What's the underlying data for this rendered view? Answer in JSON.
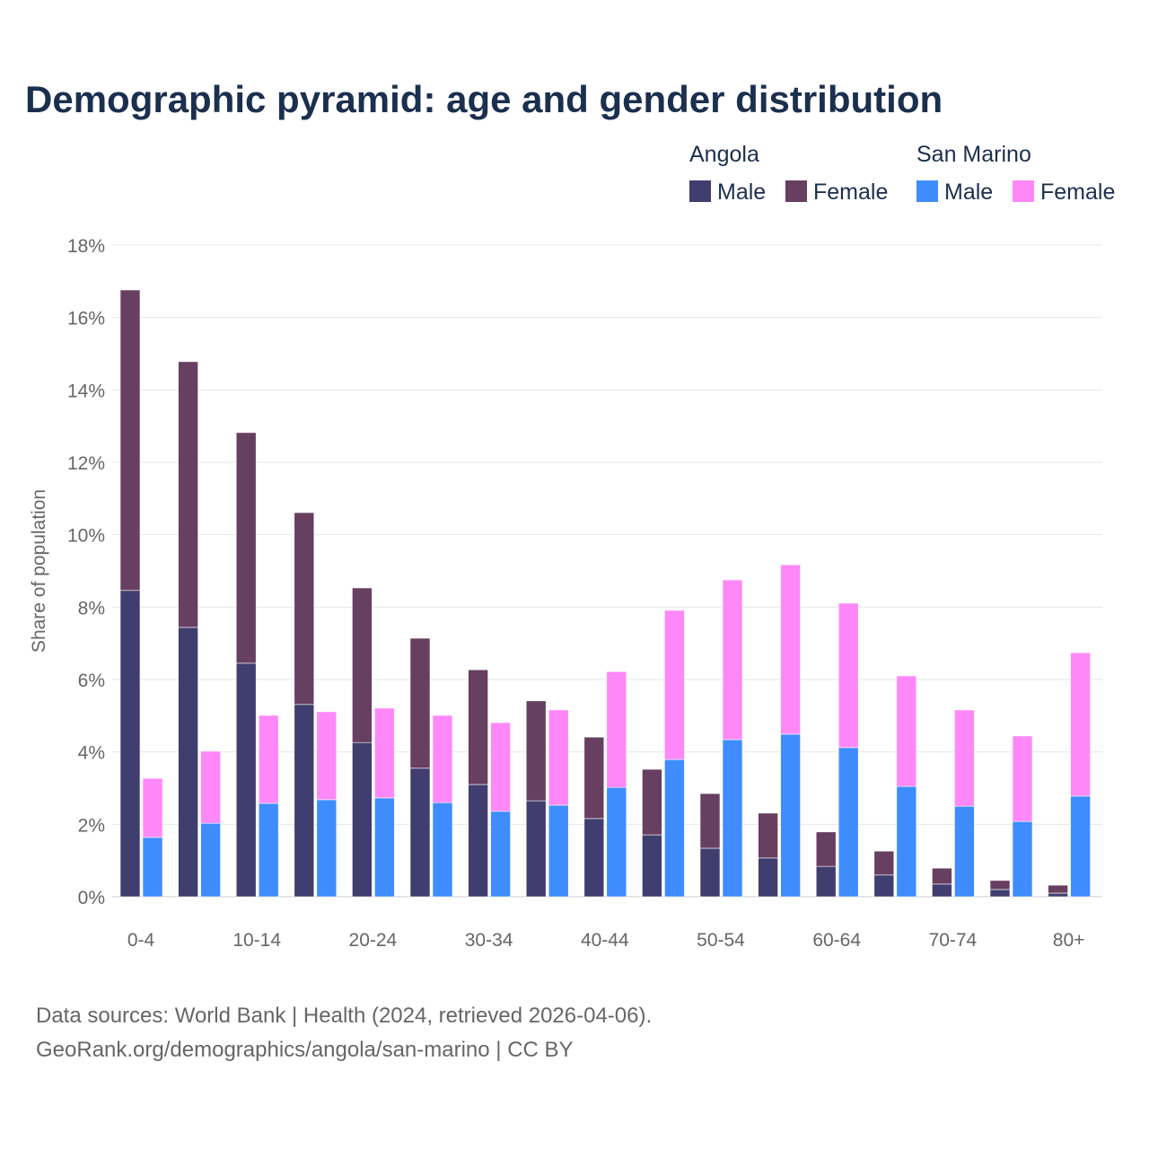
{
  "chart_data": {
    "type": "bar",
    "stacked": true,
    "title": "Demographic pyramid: age and gender distribution",
    "xlabel": "",
    "ylabel": "Share of population",
    "ylim": [
      0,
      18
    ],
    "yticks": [
      "0%",
      "2%",
      "4%",
      "6%",
      "8%",
      "10%",
      "12%",
      "14%",
      "16%",
      "18%"
    ],
    "grid": true,
    "legend_placement": "top-right",
    "categories": [
      "0-4",
      "5-9",
      "10-14",
      "15-19",
      "20-24",
      "25-29",
      "30-34",
      "35-39",
      "40-44",
      "45-49",
      "50-54",
      "55-59",
      "60-64",
      "65-69",
      "70-74",
      "75-79",
      "80+"
    ],
    "visible_xtick_labels": [
      "0-4",
      "10-14",
      "20-24",
      "30-34",
      "40-44",
      "50-54",
      "60-64",
      "70-74",
      "80+"
    ],
    "groups": [
      {
        "name": "Angola",
        "series": [
          {
            "name": "Male",
            "color": "#403d6f",
            "values": [
              8.46,
              7.44,
              6.45,
              5.31,
              4.26,
              3.55,
              3.1,
              2.65,
              2.16,
              1.71,
              1.34,
              1.07,
              0.84,
              0.6,
              0.35,
              0.2,
              0.1
            ]
          },
          {
            "name": "Female",
            "color": "#673f60",
            "values": [
              8.3,
              7.34,
              6.37,
              5.3,
              4.27,
              3.59,
              3.17,
              2.76,
              2.25,
              1.81,
              1.51,
              1.24,
              0.95,
              0.66,
              0.44,
              0.25,
              0.22
            ]
          }
        ]
      },
      {
        "name": "San Marino",
        "series": [
          {
            "name": "Male",
            "color": "#3f8cff",
            "values": [
              1.64,
              2.03,
              2.58,
              2.68,
              2.73,
              2.6,
              2.36,
              2.53,
              3.02,
              3.79,
              4.34,
              4.49,
              4.12,
              3.05,
              2.5,
              2.08,
              2.78
            ]
          },
          {
            "name": "Female",
            "color": "#ff88f8",
            "values": [
              1.63,
              1.99,
              2.43,
              2.43,
              2.48,
              2.41,
              2.45,
              2.63,
              3.2,
              4.12,
              4.41,
              4.68,
              3.99,
              3.05,
              2.66,
              2.36,
              3.96
            ]
          }
        ]
      }
    ]
  },
  "footer": {
    "line1": "Data sources: World Bank | Health (2024, retrieved 2026-04-06).",
    "line2": "GeoRank.org/demographics/angola/san-marino | CC BY"
  }
}
